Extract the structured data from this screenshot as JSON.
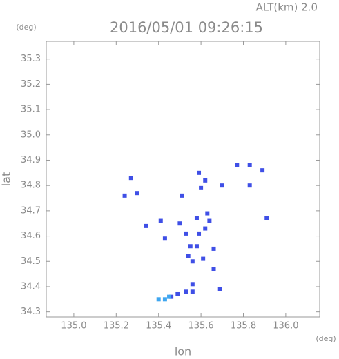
{
  "chart_data": {
    "type": "scatter",
    "title": "2016/05/01 09:26:15",
    "subtitle": "ALT(km) 2.0",
    "x_label": "lon",
    "y_label": "lat",
    "x_unit": "(deg)",
    "y_unit": "(deg)",
    "xlim": [
      134.87,
      136.16
    ],
    "ylim": [
      34.28,
      35.37
    ],
    "xticks": [
      {
        "value": 135.0,
        "label": "135.0"
      },
      135.2,
      135.4,
      135.6,
      135.8,
      {
        "value": 136.0,
        "label": "136.0"
      }
    ],
    "yticks": [
      34.3,
      34.4,
      34.5,
      34.6,
      34.7,
      34.8,
      34.9,
      {
        "value": 35.0,
        "label": "35.0"
      },
      35.1,
      35.2,
      35.3
    ],
    "series": [
      {
        "color": "#3f4fe6",
        "x": [
          135.27,
          135.3,
          135.24,
          135.34,
          135.41,
          135.43,
          135.59,
          135.6,
          135.62,
          135.7,
          135.77,
          135.83,
          135.89,
          135.83,
          135.91,
          135.51,
          135.5,
          135.53,
          135.55,
          135.54,
          135.56,
          135.58,
          135.59,
          135.62,
          135.64,
          135.63,
          135.58,
          135.66,
          135.61,
          135.66,
          135.56,
          135.56,
          135.53,
          135.49,
          135.46,
          135.69
        ],
        "values": [
          34.83,
          34.77,
          34.76,
          34.64,
          34.66,
          34.59,
          34.85,
          34.79,
          34.82,
          34.8,
          34.88,
          34.88,
          34.86,
          34.8,
          34.67,
          34.76,
          34.65,
          34.61,
          34.56,
          34.52,
          34.5,
          34.56,
          34.61,
          34.63,
          34.66,
          34.69,
          34.67,
          34.55,
          34.51,
          34.47,
          34.41,
          34.38,
          34.38,
          34.37,
          34.36,
          34.39
        ]
      },
      {
        "color": "#3fa6f0",
        "x": [
          135.43,
          135.4,
          135.45
        ],
        "values": [
          34.35,
          34.35,
          34.36
        ]
      }
    ]
  }
}
